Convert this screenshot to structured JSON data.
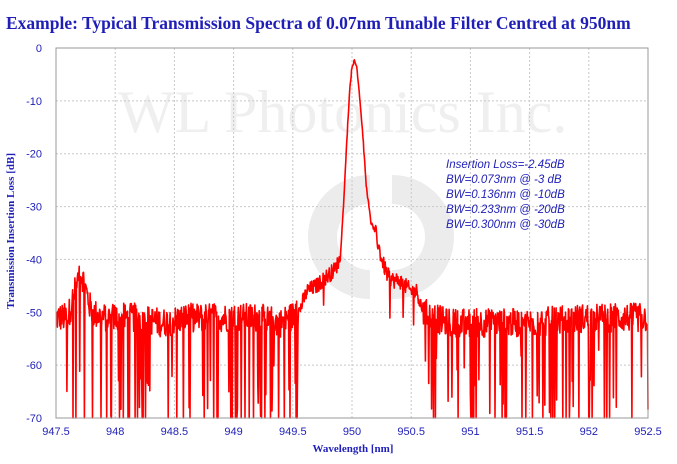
{
  "chart_data": {
    "type": "line",
    "title": "Example: Typical Transmission Spectra of 0.07nm Tunable Filter Centred at 950nm",
    "xlabel": "Wavelength [nm]",
    "ylabel": "Transmission Insertion Loss [dB]",
    "xlim": [
      947.5,
      952.5
    ],
    "ylim": [
      -70,
      0
    ],
    "grid": true,
    "x_ticks": [
      947.5,
      948,
      948.5,
      949,
      949.5,
      950,
      950.5,
      951,
      951.5,
      952,
      952.5
    ],
    "x_tick_labels": [
      "947.5",
      "948",
      "948.5",
      "949",
      "949.5",
      "950",
      "950.5",
      "951",
      "951.5",
      "952",
      "952.5"
    ],
    "y_ticks": [
      0,
      -10,
      -20,
      -30,
      -40,
      -50,
      -60,
      -70
    ],
    "y_tick_labels": [
      "0",
      "-10",
      "-20",
      "-30",
      "-40",
      "-50",
      "-60",
      "-70"
    ],
    "watermark": "WL Photonics Inc.",
    "annotations": [
      "Insertion Loss=-2.45dB",
      "BW=0.073nm @ -3 dB",
      "BW=0.136nm @ -10dB",
      "BW=0.233nm @ -20dB",
      "BW=0.300nm @ -30dB"
    ],
    "series": [
      {
        "name": "Transmission",
        "color": "#ff0000",
        "peak": {
          "x": 950.02,
          "y": -2.45
        },
        "noise_floor_mean": -51,
        "x": [
          947.5,
          947.6,
          947.66,
          947.7,
          947.72,
          947.8,
          947.9,
          948.0,
          948.2,
          948.4,
          948.6,
          948.8,
          949.0,
          949.2,
          949.4,
          949.55,
          949.62,
          949.7,
          949.8,
          949.85,
          949.9,
          949.93,
          949.96,
          949.98,
          950.0,
          950.02,
          950.04,
          950.06,
          950.09,
          950.12,
          950.16,
          950.2,
          950.25,
          950.3,
          950.35,
          950.4,
          950.45,
          950.5,
          950.55,
          950.6,
          950.8,
          951.0,
          951.5,
          952.0,
          952.5
        ],
        "y": [
          -51,
          -51,
          -46,
          -43,
          -43,
          -50,
          -51,
          -51,
          -51,
          -52,
          -51,
          -51,
          -51,
          -51,
          -52,
          -50,
          -46,
          -45,
          -43,
          -42,
          -40,
          -29,
          -16,
          -8,
          -3.5,
          -2.45,
          -3.5,
          -8,
          -16,
          -26,
          -33,
          -35,
          -40,
          -43,
          -44,
          -44,
          -45,
          -46,
          -46,
          -50,
          -52,
          -52,
          -52,
          -51,
          -51
        ]
      }
    ]
  }
}
